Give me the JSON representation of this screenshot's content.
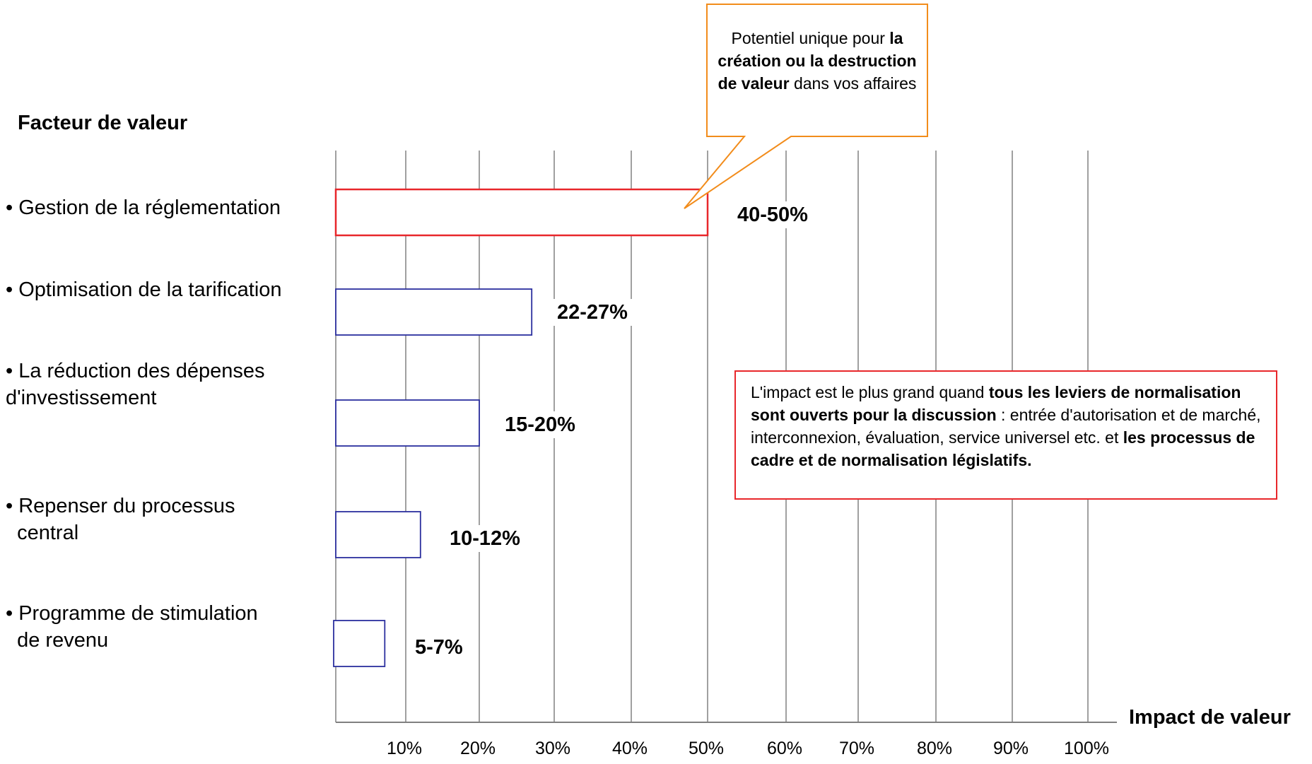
{
  "chart_data": {
    "type": "bar",
    "orientation": "horizontal",
    "ylabel": "Facteur de valeur",
    "xlabel": "Impact de valeur",
    "xlim": [
      0,
      100
    ],
    "x_ticks": [
      "10%",
      "20%",
      "30%",
      "40%",
      "50%",
      "60%",
      "70%",
      "80%",
      "90%",
      "100%"
    ],
    "grid": "vertical lines",
    "categories": [
      "• Gestion de la réglementation",
      "• Optimisation de la tarification",
      "• La réduction des dépenses d'investissement",
      "• Repenser du processus central",
      "• Programme de stimulation de revenu"
    ],
    "category_lines": [
      [
        "• Gestion de la réglementation"
      ],
      [
        "• Optimisation de la tarification"
      ],
      [
        "• La réduction des dépenses",
        "d'investissement"
      ],
      [
        "• Repenser du processus",
        "  central"
      ],
      [
        "• Programme de stimulation",
        "  de revenu"
      ]
    ],
    "values": [
      50,
      27,
      20,
      12,
      7
    ],
    "ranges": [
      [
        40,
        50
      ],
      [
        22,
        27
      ],
      [
        15,
        20
      ],
      [
        10,
        12
      ],
      [
        5,
        7
      ]
    ],
    "value_labels": [
      "40-50%",
      "22-27%",
      "15-20%",
      "10-12%",
      "5-7%"
    ],
    "bar_colors": [
      "#e8272b",
      "#2b2f9e",
      "#2b2f9e",
      "#2b2f9e",
      "#2b2f9e"
    ],
    "axis_color": "#808080",
    "gridline_color": "#808080"
  },
  "annotations": {
    "top_callout": {
      "color": "#f28c1b",
      "segments": [
        {
          "text": "Potentiel unique pour ",
          "bold": false
        },
        {
          "text": "la création ou la destruction de valeur",
          "bold": true
        },
        {
          "text": " dans vos affaires",
          "bold": false
        }
      ]
    },
    "bottom_callout": {
      "color": "#e8272b",
      "segments": [
        {
          "text": "L'impact est le plus grand quand ",
          "bold": false
        },
        {
          "text": "tous les leviers de normalisation sont ouverts pour la discussion",
          "bold": true
        },
        {
          "text": " : entrée d'autorisation et de marché, interconnexion, évaluation, service universel etc. et ",
          "bold": false
        },
        {
          "text": "les processus de cadre et de normalisation législatifs.",
          "bold": true
        }
      ]
    }
  }
}
